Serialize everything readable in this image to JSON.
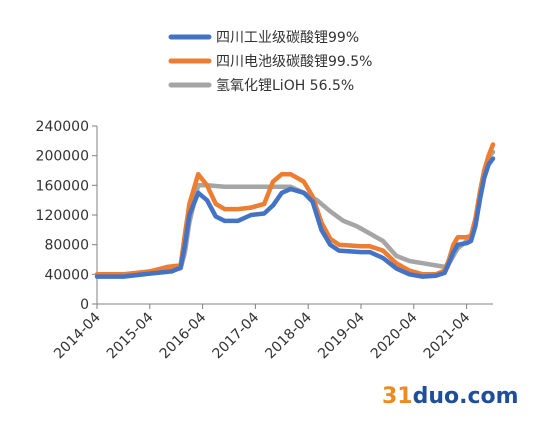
{
  "chart_data": {
    "type": "line",
    "title": "",
    "xlabel": "",
    "ylabel": "",
    "ylim": [
      0,
      240000
    ],
    "y_ticks": [
      "0",
      "40000",
      "80000",
      "120000",
      "160000",
      "200000",
      "240000"
    ],
    "x_ticks": [
      "2014-04",
      "2015-04",
      "2016-04",
      "2017-04",
      "2018-04",
      "2019-04",
      "2020-04",
      "2021-04"
    ],
    "x_range": [
      "2014-04",
      "2021-10"
    ],
    "grid": false,
    "legend_position": "top",
    "series": [
      {
        "name": "四川工业级碳酸锂99%",
        "color": "#4472c4",
        "points": [
          [
            "2014-04",
            37000
          ],
          [
            "2014-10",
            37000
          ],
          [
            "2015-04",
            41000
          ],
          [
            "2015-09",
            44000
          ],
          [
            "2015-11",
            49000
          ],
          [
            "2015-12",
            80000
          ],
          [
            "2016-01",
            120000
          ],
          [
            "2016-03",
            150000
          ],
          [
            "2016-05",
            140000
          ],
          [
            "2016-07",
            118000
          ],
          [
            "2016-09",
            112000
          ],
          [
            "2016-12",
            112000
          ],
          [
            "2017-03",
            120000
          ],
          [
            "2017-06",
            122000
          ],
          [
            "2017-08",
            133000
          ],
          [
            "2017-10",
            150000
          ],
          [
            "2017-12",
            155000
          ],
          [
            "2018-03",
            150000
          ],
          [
            "2018-05",
            138000
          ],
          [
            "2018-07",
            100000
          ],
          [
            "2018-09",
            80000
          ],
          [
            "2018-11",
            72000
          ],
          [
            "2019-04",
            70000
          ],
          [
            "2019-06",
            70000
          ],
          [
            "2019-09",
            62000
          ],
          [
            "2019-12",
            48000
          ],
          [
            "2020-03",
            40000
          ],
          [
            "2020-06",
            37000
          ],
          [
            "2020-09",
            38000
          ],
          [
            "2020-11",
            42000
          ],
          [
            "2020-12",
            55000
          ],
          [
            "2021-01",
            70000
          ],
          [
            "2021-02",
            80000
          ],
          [
            "2021-04",
            82000
          ],
          [
            "2021-05",
            85000
          ],
          [
            "2021-06",
            105000
          ],
          [
            "2021-07",
            140000
          ],
          [
            "2021-08",
            170000
          ],
          [
            "2021-09",
            188000
          ],
          [
            "2021-10",
            196000
          ]
        ]
      },
      {
        "name": "四川电池级碳酸锂99.5%",
        "color": "#ed7d31",
        "points": [
          [
            "2014-04",
            40000
          ],
          [
            "2014-10",
            40000
          ],
          [
            "2015-04",
            44000
          ],
          [
            "2015-08",
            50000
          ],
          [
            "2015-11",
            52000
          ],
          [
            "2015-12",
            95000
          ],
          [
            "2016-01",
            135000
          ],
          [
            "2016-03",
            175000
          ],
          [
            "2016-05",
            160000
          ],
          [
            "2016-07",
            135000
          ],
          [
            "2016-09",
            128000
          ],
          [
            "2016-12",
            128000
          ],
          [
            "2017-03",
            130000
          ],
          [
            "2017-06",
            135000
          ],
          [
            "2017-08",
            165000
          ],
          [
            "2017-10",
            175000
          ],
          [
            "2017-12",
            175000
          ],
          [
            "2018-03",
            165000
          ],
          [
            "2018-05",
            145000
          ],
          [
            "2018-07",
            110000
          ],
          [
            "2018-09",
            88000
          ],
          [
            "2018-11",
            80000
          ],
          [
            "2019-04",
            78000
          ],
          [
            "2019-06",
            78000
          ],
          [
            "2019-09",
            72000
          ],
          [
            "2019-12",
            55000
          ],
          [
            "2020-03",
            45000
          ],
          [
            "2020-06",
            40000
          ],
          [
            "2020-09",
            40000
          ],
          [
            "2020-11",
            45000
          ],
          [
            "2020-12",
            60000
          ],
          [
            "2021-01",
            80000
          ],
          [
            "2021-02",
            90000
          ],
          [
            "2021-04",
            90000
          ],
          [
            "2021-05",
            92000
          ],
          [
            "2021-06",
            115000
          ],
          [
            "2021-07",
            150000
          ],
          [
            "2021-08",
            180000
          ],
          [
            "2021-09",
            200000
          ],
          [
            "2021-10",
            215000
          ]
        ]
      },
      {
        "name": "氢氧化锂LiOH 56.5%",
        "color": "#a5a5a5",
        "points": [
          [
            "2014-04",
            40000
          ],
          [
            "2014-10",
            40000
          ],
          [
            "2015-04",
            42000
          ],
          [
            "2015-08",
            45000
          ],
          [
            "2015-11",
            48000
          ],
          [
            "2015-12",
            70000
          ],
          [
            "2016-01",
            110000
          ],
          [
            "2016-03",
            160000
          ],
          [
            "2016-05",
            160000
          ],
          [
            "2016-09",
            158000
          ],
          [
            "2016-12",
            158000
          ],
          [
            "2017-03",
            158000
          ],
          [
            "2017-06",
            158000
          ],
          [
            "2017-09",
            158000
          ],
          [
            "2017-12",
            158000
          ],
          [
            "2018-03",
            150000
          ],
          [
            "2018-06",
            140000
          ],
          [
            "2018-09",
            125000
          ],
          [
            "2018-12",
            112000
          ],
          [
            "2019-03",
            105000
          ],
          [
            "2019-06",
            95000
          ],
          [
            "2019-09",
            85000
          ],
          [
            "2019-12",
            65000
          ],
          [
            "2020-03",
            58000
          ],
          [
            "2020-06",
            55000
          ],
          [
            "2020-09",
            52000
          ],
          [
            "2020-11",
            50000
          ],
          [
            "2020-12",
            55000
          ],
          [
            "2021-01",
            65000
          ],
          [
            "2021-02",
            75000
          ],
          [
            "2021-04",
            85000
          ],
          [
            "2021-05",
            88000
          ],
          [
            "2021-06",
            110000
          ],
          [
            "2021-07",
            150000
          ],
          [
            "2021-08",
            180000
          ],
          [
            "2021-09",
            198000
          ],
          [
            "2021-10",
            205000
          ]
        ]
      }
    ]
  },
  "watermark": {
    "part_a": "31",
    "part_b": "duo.com"
  }
}
